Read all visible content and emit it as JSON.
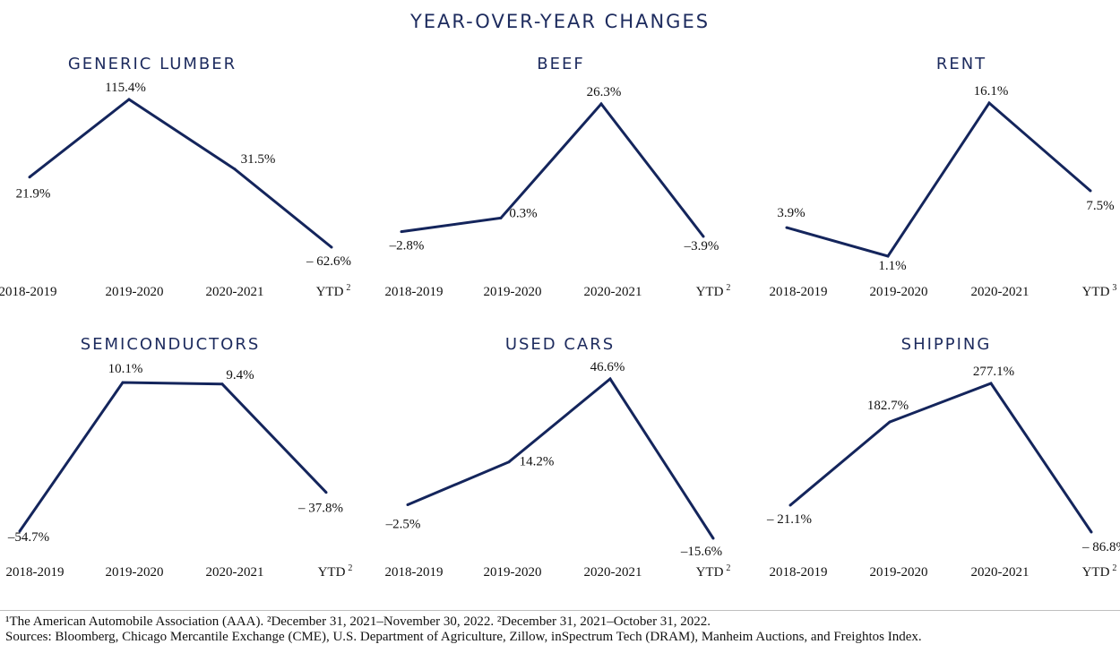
{
  "title": "YEAR-OVER-YEAR CHANGES",
  "chart_data": [
    {
      "type": "line",
      "title": "GENERIC LUMBER",
      "categories": [
        "2018-2019",
        "2019-2020",
        "2020-2021",
        "YTD"
      ],
      "category_superscripts": [
        "",
        "",
        "",
        "2"
      ],
      "values": [
        21.9,
        115.4,
        31.5,
        -62.6
      ],
      "value_labels": [
        "21.9%",
        "115.4%",
        "31.5%",
        "– 62.6%"
      ],
      "color": "#14255c"
    },
    {
      "type": "line",
      "title": "BEEF",
      "categories": [
        "2018-2019",
        "2019-2020",
        "2020-2021",
        "YTD"
      ],
      "category_superscripts": [
        "",
        "",
        "",
        "2"
      ],
      "values": [
        -2.8,
        0.3,
        26.3,
        -3.9
      ],
      "value_labels": [
        "–2.8%",
        "0.3%",
        "26.3%",
        "–3.9%"
      ],
      "color": "#14255c"
    },
    {
      "type": "line",
      "title": "RENT",
      "categories": [
        "2018-2019",
        "2019-2020",
        "2020-2021",
        "YTD"
      ],
      "category_superscripts": [
        "",
        "",
        "",
        "3"
      ],
      "values": [
        3.9,
        1.1,
        16.1,
        7.5
      ],
      "value_labels": [
        "3.9%",
        "1.1%",
        "16.1%",
        "7.5%"
      ],
      "color": "#14255c"
    },
    {
      "type": "line",
      "title": "SEMICONDUCTORS",
      "categories": [
        "2018-2019",
        "2019-2020",
        "2020-2021",
        "YTD"
      ],
      "category_superscripts": [
        "",
        "",
        "",
        "2"
      ],
      "values": [
        -54.7,
        10.1,
        9.4,
        -37.8
      ],
      "value_labels": [
        "–54.7%",
        "10.1%",
        "9.4%",
        "– 37.8%"
      ],
      "color": "#14255c"
    },
    {
      "type": "line",
      "title": "USED CARS",
      "categories": [
        "2018-2019",
        "2019-2020",
        "2020-2021",
        "YTD"
      ],
      "category_superscripts": [
        "",
        "",
        "",
        "2"
      ],
      "values": [
        -2.5,
        14.2,
        46.6,
        -15.6
      ],
      "value_labels": [
        "–2.5%",
        "14.2%",
        "46.6%",
        "–15.6%"
      ],
      "color": "#14255c"
    },
    {
      "type": "line",
      "title": "SHIPPING",
      "categories": [
        "2018-2019",
        "2019-2020",
        "2020-2021",
        "YTD"
      ],
      "category_superscripts": [
        "",
        "",
        "",
        "2"
      ],
      "values": [
        -21.1,
        182.7,
        277.1,
        -86.8
      ],
      "value_labels": [
        "– 21.1%",
        "182.7%",
        "277.1%",
        "– 86.8%"
      ],
      "color": "#14255c"
    }
  ],
  "footnotes": {
    "line1": "¹The American Automobile Association (AAA). ²December 31, 2021–November 30, 2022. ²December 31, 2021–October 31, 2022.",
    "line2": "Sources: Bloomberg, Chicago Mercantile Exchange (CME), U.S. Department of Agriculture, Zillow, inSpectrum Tech (DRAM), Manheim Auctions, and Freightos Index."
  }
}
